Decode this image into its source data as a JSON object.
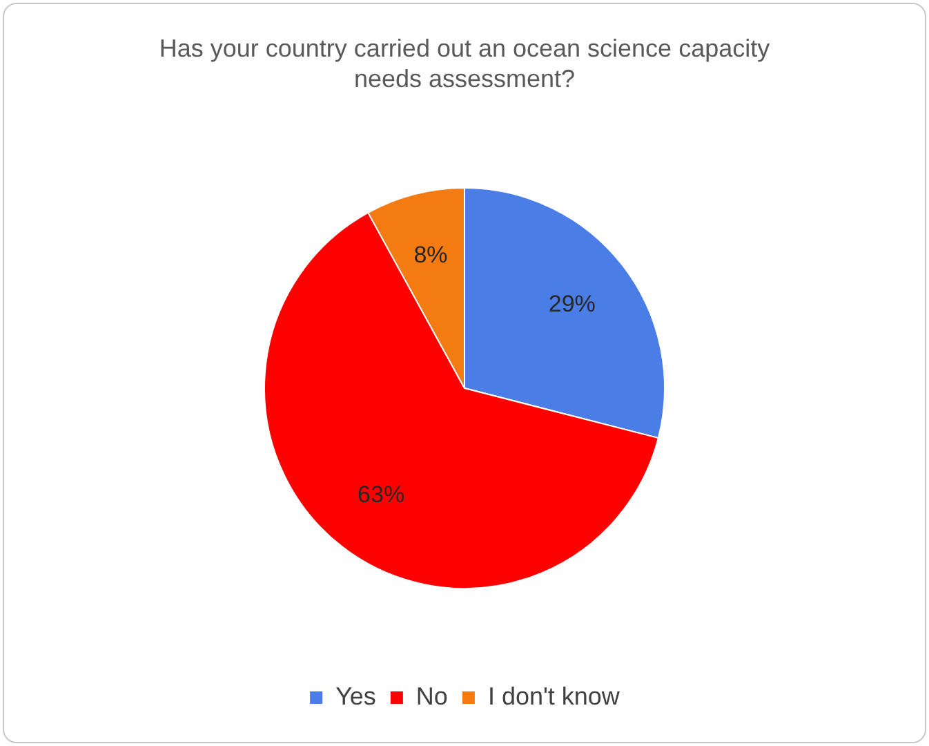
{
  "chart_data": {
    "type": "pie",
    "title": "Has your country carried out an ocean science capacity needs assessment?",
    "categories": [
      "Yes",
      "No",
      "I don't know"
    ],
    "values": [
      29,
      63,
      8
    ],
    "value_labels": [
      "29%",
      "63%",
      "8%"
    ],
    "colors": [
      "#4a7ee6",
      "#ff0000",
      "#f47a12"
    ],
    "legend": "bottom"
  }
}
